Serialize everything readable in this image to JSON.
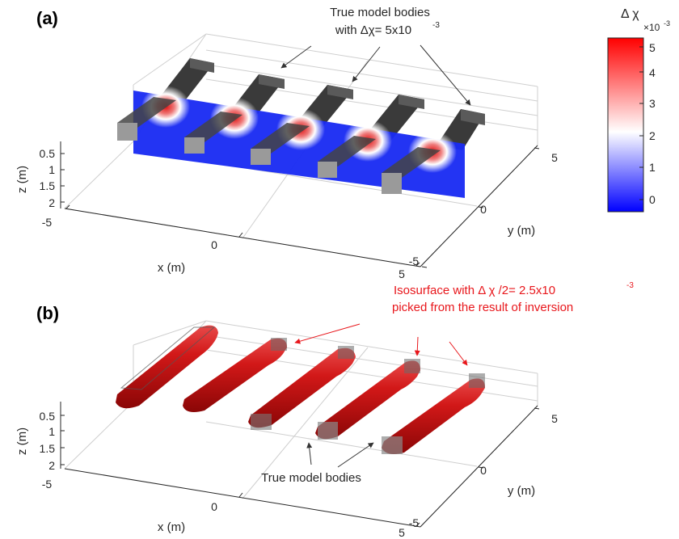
{
  "panels": [
    {
      "label": "(a)",
      "annotation_lines": [
        "True model bodies",
        "with Δχ= 5x10",
        "-3"
      ],
      "axes": {
        "xlabel": "x (m)",
        "ylabel": "y (m)",
        "zlabel": "z (m)",
        "x_ticks": [
          "-5",
          "0",
          "5"
        ],
        "y_ticks": [
          "-5",
          "0",
          "5"
        ],
        "z_ticks": [
          "0.5",
          "1",
          "1.5",
          "2"
        ]
      }
    },
    {
      "label": "(b)",
      "annotation_lines": [
        "Isosurface with Δ χ /2= 2.5x10",
        "-3",
        "picked from the result of inversion"
      ],
      "bodies_label": "True model bodies",
      "axes": {
        "xlabel": "x (m)",
        "ylabel": "y (m)",
        "zlabel": "z (m)",
        "x_ticks": [
          "-5",
          "0",
          "5"
        ],
        "y_ticks": [
          "-5",
          "0",
          "5"
        ],
        "z_ticks": [
          "0.5",
          "1",
          "1.5",
          "2"
        ]
      }
    }
  ],
  "colorbar": {
    "title": "Δ χ",
    "exponent_base": "×10",
    "exponent": "-3",
    "ticks": [
      "5",
      "4",
      "3",
      "2",
      "1",
      "0"
    ],
    "colors": [
      "#0000ff",
      "#ffffff",
      "#ff0000"
    ]
  },
  "colors": {
    "body_gray": "#4a4a4a",
    "slice_blue": "#1a2cf2",
    "isosurface_red": "#c01010",
    "annotation_red": "#e8161b",
    "arrow_dark": "#333333"
  },
  "chart_data": [
    {
      "type": "surface",
      "panel": "(a)",
      "description_source": "vertical slice through five prism bodies",
      "body_count": 5,
      "true_contrast": 0.005,
      "color_range": [
        -0.0005,
        0.005
      ],
      "xlim": [
        -5,
        5
      ],
      "ylim": [
        -5,
        5
      ],
      "zlim": [
        0,
        2
      ],
      "z_reversed": true,
      "grid": true
    },
    {
      "type": "surface",
      "panel": "(b)",
      "body_count": 5,
      "isosurface_value": 0.0025,
      "xlim": [
        -5,
        5
      ],
      "ylim": [
        -5,
        5
      ],
      "zlim": [
        0,
        2
      ],
      "z_reversed": true,
      "grid": true
    }
  ]
}
